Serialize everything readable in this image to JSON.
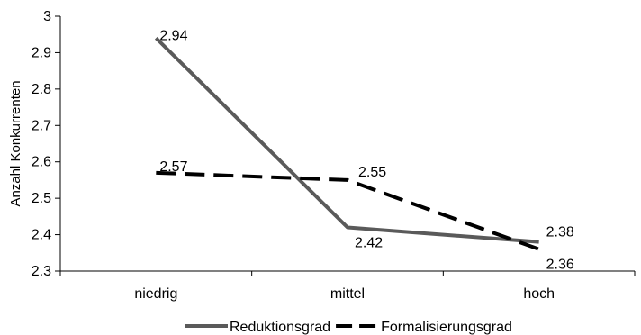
{
  "chart_data": {
    "type": "line",
    "categories": [
      "niedrig",
      "mittel",
      "hoch"
    ],
    "ylabel": "Anzahl Konkurrenten",
    "xlabel": "",
    "ylim": [
      2.3,
      3.0
    ],
    "yticks": [
      2.3,
      2.4,
      2.5,
      2.6,
      2.7,
      2.8,
      2.9,
      3
    ],
    "ytick_labels": [
      "2.3",
      "2.4",
      "2.5",
      "2.6",
      "2.7",
      "2.8",
      "2.9",
      "3"
    ],
    "grid": false,
    "legend_position": "bottom",
    "series": [
      {
        "name": "Reduktionsgrad",
        "values": [
          2.94,
          2.42,
          2.38
        ],
        "labels": [
          "2.94",
          "2.42",
          "2.38"
        ],
        "color": "#5a5a5a",
        "style": "solid"
      },
      {
        "name": "Formalisierungsgrad",
        "values": [
          2.57,
          2.55,
          2.36
        ],
        "labels": [
          "2.57",
          "2.55",
          "2.36"
        ],
        "color": "#000000",
        "style": "dashed"
      }
    ]
  }
}
